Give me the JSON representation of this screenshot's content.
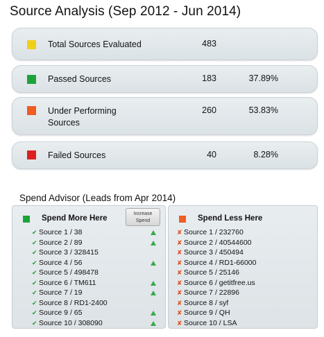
{
  "title": "Source Analysis (Sep 2012 - Jun 2014)",
  "stats": [
    {
      "label": "Total Sources Evaluated",
      "count": "483",
      "pct": "",
      "color": "#f0cf16"
    },
    {
      "label": "Passed Sources",
      "count": "183",
      "pct": "37.89%",
      "color": "#1ea33a"
    },
    {
      "label": "Under Performing\nSources",
      "count": "260",
      "pct": "53.83%",
      "color": "#f05d22"
    },
    {
      "label": "Failed Sources",
      "count": "40",
      "pct": "8.28%",
      "color": "#dc1f1f"
    }
  ],
  "advisor": {
    "title": "Spend Advisor (Leads from Apr 2014)",
    "more": {
      "heading": "Spend More Here",
      "color": "#1ea33a",
      "button_label": "Increase Spend",
      "items": [
        {
          "text": "Source 1 / 38",
          "up": true
        },
        {
          "text": "Source 2 / 89",
          "up": true
        },
        {
          "text": "Source 3 / 328415",
          "up": false
        },
        {
          "text": "Source 4 / 56",
          "up": true
        },
        {
          "text": "Source 5 / 498478",
          "up": false
        },
        {
          "text": "Source 6 / TM611",
          "up": true
        },
        {
          "text": "Source 7 / 19",
          "up": true
        },
        {
          "text": "Source 8 / RD1-2400",
          "up": false
        },
        {
          "text": "Source 9 / 65",
          "up": true
        },
        {
          "text": "Source 10 / 308090",
          "up": true
        }
      ]
    },
    "less": {
      "heading": "Spend Less Here",
      "color": "#f05d22",
      "items": [
        "Source 1 / 232760",
        "Source 2 / 40544600",
        "Source 3 / 450494",
        "Source 4 / RD1-66000",
        "Source 5 / 25146",
        "Source 6 / getitfree.us",
        "Source 7 / 22896",
        "Source 8 / syf",
        "Source 9 / QH",
        "Source 10 / LSA"
      ]
    }
  }
}
